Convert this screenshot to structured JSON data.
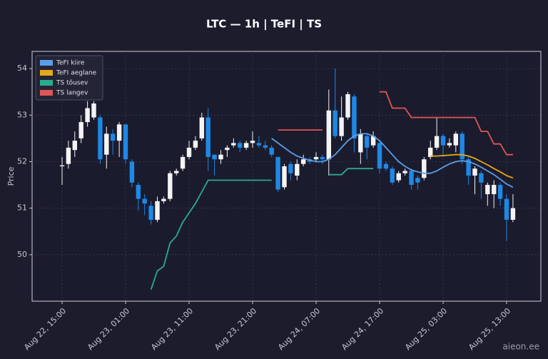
{
  "chart_data": {
    "type": "candlestick",
    "title": "LTC — 1h  |  TeFI  |  TS",
    "ylabel": "Price",
    "watermark": "aieon.ee",
    "categories": [
      "Aug 22, 15:00",
      null,
      null,
      null,
      null,
      null,
      null,
      null,
      null,
      null,
      "Aug 23, 01:00",
      null,
      null,
      null,
      null,
      null,
      null,
      null,
      null,
      null,
      "Aug 23, 11:00",
      null,
      null,
      null,
      null,
      null,
      null,
      null,
      null,
      null,
      "Aug 23, 21:00",
      null,
      null,
      null,
      null,
      null,
      null,
      null,
      null,
      null,
      "Aug 24, 07:00",
      null,
      null,
      null,
      null,
      null,
      null,
      null,
      null,
      null,
      "Aug 24, 17:00",
      null,
      null,
      null,
      null,
      null,
      null,
      null,
      null,
      null,
      "Aug 25, 03:00",
      null,
      null,
      null,
      null,
      null,
      null,
      null,
      null,
      null,
      "Aug 25, 13:00",
      null
    ],
    "open": [
      51.9,
      51.95,
      52.25,
      52.5,
      52.85,
      52.95,
      52.95,
      52.15,
      52.6,
      52.45,
      52.8,
      52.0,
      51.5,
      51.2,
      51.05,
      50.75,
      51.15,
      51.2,
      51.75,
      51.85,
      52.1,
      52.3,
      52.5,
      52.95,
      52.15,
      52.05,
      52.25,
      52.35,
      52.4,
      52.3,
      52.4,
      52.4,
      52.35,
      52.3,
      52.1,
      51.45,
      51.95,
      51.7,
      51.95,
      52.05,
      52.05,
      52.1,
      52.05,
      53.1,
      52.55,
      52.95,
      53.4,
      52.2,
      52.55,
      52.35,
      52.4,
      51.95,
      51.85,
      51.6,
      51.75,
      51.8,
      51.65,
      51.65,
      52.1,
      52.3,
      52.55,
      52.35,
      52.35,
      52.6,
      52.05,
      51.7,
      51.75,
      51.3,
      51.3,
      51.5,
      51.2,
      50.75
    ],
    "high": [
      52.1,
      52.45,
      52.65,
      53.0,
      53.3,
      53.3,
      53.0,
      52.75,
      52.7,
      52.85,
      52.8,
      52.05,
      51.55,
      51.3,
      51.15,
      51.25,
      51.25,
      51.8,
      51.85,
      52.15,
      52.45,
      52.55,
      53.05,
      53.15,
      52.15,
      52.25,
      52.35,
      52.5,
      52.45,
      52.45,
      52.65,
      52.55,
      52.45,
      52.35,
      52.1,
      51.95,
      52.0,
      52.05,
      52.15,
      52.1,
      52.2,
      52.15,
      53.55,
      54.0,
      53.4,
      53.5,
      53.45,
      52.7,
      52.6,
      52.65,
      52.45,
      52.0,
      51.9,
      51.8,
      51.85,
      51.85,
      51.7,
      52.1,
      52.45,
      52.95,
      52.6,
      52.5,
      52.65,
      52.65,
      52.1,
      51.9,
      51.8,
      51.55,
      51.6,
      51.55,
      51.3,
      51.3
    ],
    "low": [
      51.5,
      51.85,
      52.1,
      52.4,
      52.75,
      52.9,
      51.95,
      51.85,
      52.15,
      52.1,
      51.95,
      51.45,
      50.95,
      50.85,
      50.65,
      50.7,
      51.1,
      51.15,
      51.7,
      51.8,
      52.05,
      52.25,
      52.45,
      51.8,
      51.7,
      51.95,
      52.1,
      52.3,
      52.2,
      52.25,
      52.3,
      52.3,
      52.25,
      52.1,
      51.35,
      51.4,
      51.6,
      51.6,
      51.9,
      51.95,
      52.0,
      51.95,
      51.7,
      52.5,
      52.45,
      52.9,
      52.2,
      51.95,
      52.05,
      52.3,
      51.75,
      51.8,
      51.5,
      51.55,
      51.7,
      51.4,
      51.4,
      51.6,
      52.05,
      52.25,
      52.1,
      52.3,
      52.2,
      51.95,
      51.5,
      51.3,
      51.2,
      51.05,
      51.0,
      51.05,
      50.3,
      50.7
    ],
    "close": [
      51.92,
      52.3,
      52.45,
      52.85,
      53.15,
      53.25,
      52.05,
      52.6,
      52.45,
      52.8,
      52.05,
      51.55,
      51.2,
      51.1,
      50.75,
      51.15,
      51.2,
      51.75,
      51.8,
      52.1,
      52.3,
      52.45,
      52.95,
      52.1,
      52.05,
      52.15,
      52.3,
      52.4,
      52.3,
      52.4,
      52.45,
      52.35,
      52.3,
      52.15,
      51.4,
      51.9,
      51.75,
      51.95,
      52.05,
      52.0,
      52.1,
      52.05,
      53.1,
      52.55,
      52.95,
      53.45,
      52.5,
      52.6,
      52.3,
      52.55,
      51.85,
      51.85,
      51.55,
      51.75,
      51.8,
      51.5,
      51.55,
      52.05,
      52.3,
      52.55,
      52.35,
      52.4,
      52.6,
      52.05,
      51.7,
      51.85,
      51.55,
      51.5,
      51.5,
      51.2,
      50.75,
      51.0
    ],
    "up_color": "#f4f4f4",
    "down_color": "#1e88e5",
    "series": [
      {
        "name": "TeFI kiire",
        "color": "#5b9ee6",
        "values": [
          null,
          null,
          null,
          null,
          null,
          null,
          null,
          null,
          null,
          null,
          null,
          null,
          null,
          null,
          null,
          null,
          null,
          null,
          null,
          null,
          null,
          null,
          null,
          null,
          null,
          null,
          null,
          null,
          null,
          null,
          null,
          null,
          null,
          52.5,
          52.4,
          52.3,
          52.2,
          52.12,
          52.07,
          52.03,
          52.0,
          52.0,
          52.05,
          52.15,
          52.3,
          52.45,
          52.55,
          52.6,
          52.6,
          52.55,
          52.45,
          52.3,
          52.15,
          52.0,
          51.9,
          51.82,
          51.78,
          51.75,
          51.75,
          51.8,
          51.88,
          51.95,
          52.0,
          52.02,
          52.0,
          51.95,
          51.88,
          51.8,
          51.72,
          51.62,
          51.52,
          51.45
        ]
      },
      {
        "name": "TeFI aeglane",
        "color": "#e6a817",
        "values": [
          null,
          null,
          null,
          null,
          null,
          null,
          null,
          null,
          null,
          null,
          null,
          null,
          null,
          null,
          null,
          null,
          null,
          null,
          null,
          null,
          null,
          null,
          null,
          null,
          null,
          null,
          null,
          null,
          null,
          null,
          null,
          null,
          null,
          null,
          null,
          null,
          null,
          null,
          null,
          null,
          null,
          null,
          null,
          null,
          null,
          null,
          null,
          null,
          null,
          null,
          null,
          null,
          null,
          null,
          null,
          null,
          null,
          null,
          52.12,
          52.12,
          52.13,
          52.14,
          52.15,
          52.15,
          52.12,
          52.07,
          52.0,
          51.93,
          51.85,
          51.78,
          51.7,
          51.65
        ]
      },
      {
        "name": "TS tõusev",
        "color": "#2bab8c",
        "values": [
          null,
          null,
          null,
          null,
          null,
          null,
          null,
          null,
          null,
          null,
          null,
          null,
          null,
          null,
          49.25,
          49.65,
          49.75,
          50.25,
          50.4,
          50.7,
          50.9,
          51.1,
          51.35,
          51.6,
          51.6,
          51.6,
          51.6,
          51.6,
          51.6,
          51.6,
          51.6,
          51.6,
          51.6,
          51.6,
          null,
          null,
          null,
          null,
          null,
          null,
          null,
          null,
          51.72,
          51.72,
          51.72,
          51.85,
          51.85,
          51.85,
          51.85,
          51.85,
          null,
          null,
          null,
          null,
          null,
          null,
          null,
          null,
          null,
          null,
          null,
          null,
          null,
          null,
          null,
          null,
          null,
          null,
          null,
          null,
          null,
          null
        ]
      },
      {
        "name": "TS langev",
        "color": "#e05555",
        "values": [
          null,
          null,
          null,
          null,
          null,
          null,
          null,
          null,
          null,
          null,
          null,
          null,
          null,
          null,
          null,
          null,
          null,
          null,
          null,
          null,
          null,
          null,
          null,
          null,
          null,
          null,
          null,
          null,
          null,
          null,
          null,
          null,
          null,
          null,
          52.68,
          52.68,
          52.68,
          52.68,
          52.68,
          52.68,
          52.68,
          52.68,
          null,
          null,
          null,
          null,
          null,
          null,
          null,
          null,
          53.5,
          53.5,
          53.15,
          53.15,
          53.15,
          52.95,
          52.95,
          52.95,
          52.95,
          52.95,
          52.95,
          52.95,
          52.95,
          52.95,
          52.95,
          52.95,
          52.65,
          52.65,
          52.38,
          52.38,
          52.15,
          52.15
        ]
      }
    ],
    "ylim": [
      49.0,
      54.37
    ],
    "yticks": [
      50,
      51,
      52,
      53,
      54
    ],
    "grid": true,
    "legend": "upper left"
  }
}
